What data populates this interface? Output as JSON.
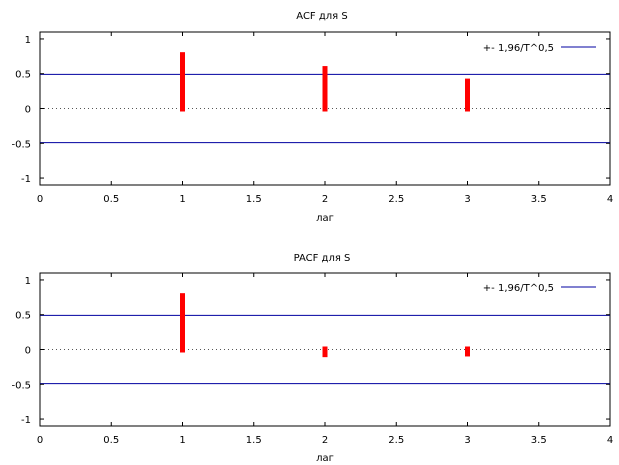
{
  "chart_data": [
    {
      "type": "bar",
      "title": "ACF для S",
      "xlabel": "лаг",
      "ylabel": "",
      "xlim": [
        0,
        4
      ],
      "ylim": [
        -1.1,
        1.1
      ],
      "x_ticks": [
        "0",
        "0.5",
        "1",
        "1.5",
        "2",
        "2.5",
        "3",
        "3.5",
        "4"
      ],
      "y_ticks": [
        "1",
        "0.5",
        "0",
        "-0.5",
        "-1"
      ],
      "x": [
        1,
        2,
        3
      ],
      "values": [
        0.81,
        0.61,
        0.43
      ],
      "bound": 0.49,
      "legend": {
        "label": "+- 1,96/T^0,5",
        "position": "top-right"
      },
      "colors": {
        "bars": "#ff0000",
        "bound": "#0000a0"
      },
      "grid": false
    },
    {
      "type": "bar",
      "title": "PACF для S",
      "xlabel": "лаг",
      "ylabel": "",
      "xlim": [
        0,
        4
      ],
      "ylim": [
        -1.1,
        1.1
      ],
      "x_ticks": [
        "0",
        "0.5",
        "1",
        "1.5",
        "2",
        "2.5",
        "3",
        "3.5",
        "4"
      ],
      "y_ticks": [
        "1",
        "0.5",
        "0",
        "-0.5",
        "-1"
      ],
      "x": [
        1,
        2,
        3
      ],
      "values": [
        0.81,
        -0.11,
        -0.1
      ],
      "bound": 0.49,
      "legend": {
        "label": "+- 1,96/T^0,5",
        "position": "top-right"
      },
      "colors": {
        "bars": "#ff0000",
        "bound": "#0000a0"
      },
      "grid": false
    }
  ]
}
